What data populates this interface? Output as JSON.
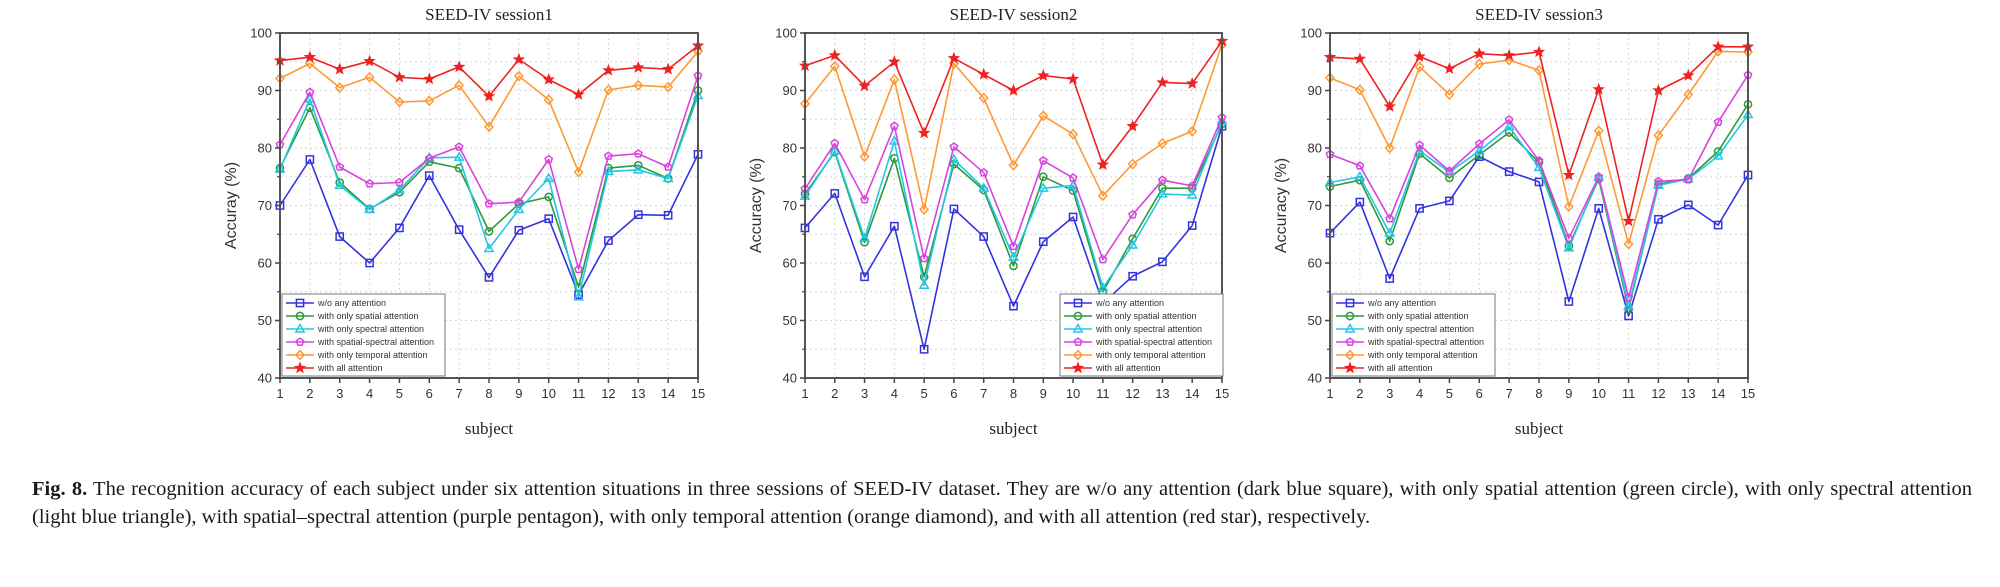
{
  "chart_data": [
    {
      "type": "line",
      "title": "SEED-IV session1",
      "xlabel": "subject",
      "ylabel": "Accuray (%)",
      "x": [
        1,
        2,
        3,
        4,
        5,
        6,
        7,
        8,
        9,
        10,
        11,
        12,
        13,
        14,
        15
      ],
      "xticks": [
        "1",
        "2",
        "3",
        "4",
        "5",
        "6",
        "7",
        "8",
        "9",
        "10",
        "11",
        "12",
        "13",
        "14",
        "15"
      ],
      "yticks": [
        "40",
        "50",
        "60",
        "70",
        "80",
        "90",
        "100"
      ],
      "ylim": [
        40,
        100
      ],
      "xlim": [
        1,
        15
      ],
      "grid": true,
      "legend_position": "bottom-left",
      "series": [
        {
          "name": "w/o any attention",
          "color": "#3333dd",
          "marker": "square",
          "values": [
            70.0,
            78.0,
            64.6,
            60.0,
            66.1,
            75.2,
            65.8,
            57.5,
            65.7,
            67.7,
            54.5,
            63.9,
            68.4,
            68.3,
            78.9
          ]
        },
        {
          "name": "with only spatial attention",
          "color": "#2e9a3a",
          "marker": "circle",
          "values": [
            76.5,
            87.0,
            74.0,
            69.4,
            72.3,
            77.6,
            76.5,
            65.5,
            70.3,
            71.5,
            55.8,
            76.5,
            77.0,
            74.7,
            90.0
          ]
        },
        {
          "name": "with only spectral attention",
          "color": "#22c8e6",
          "marker": "triangle",
          "values": [
            76.3,
            88.5,
            73.5,
            69.3,
            72.7,
            78.3,
            78.4,
            62.5,
            69.3,
            74.7,
            54.1,
            75.9,
            76.2,
            74.7,
            89.1
          ]
        },
        {
          "name": "with spatial-spectral attention",
          "color": "#d843e0",
          "marker": "pentagon",
          "values": [
            80.6,
            89.7,
            76.7,
            73.8,
            74.0,
            78.2,
            80.2,
            70.3,
            70.6,
            78.0,
            58.9,
            78.6,
            79.0,
            76.7,
            92.6
          ]
        },
        {
          "name": "with only temporal attention",
          "color": "#ff9933",
          "marker": "diamond",
          "values": [
            92.1,
            94.7,
            90.5,
            92.3,
            88.0,
            88.2,
            90.9,
            83.7,
            92.5,
            88.4,
            75.8,
            90.1,
            90.9,
            90.6,
            96.8
          ]
        },
        {
          "name": "with all attention",
          "color": "#ee2222",
          "marker": "star",
          "values": [
            95.2,
            95.8,
            93.7,
            95.1,
            92.3,
            92.0,
            94.1,
            89.0,
            95.4,
            91.9,
            89.3,
            93.5,
            94.0,
            93.7,
            97.8
          ]
        }
      ]
    },
    {
      "type": "line",
      "title": "SEED-IV session2",
      "xlabel": "subject",
      "ylabel": "Accuracy (%)",
      "x": [
        1,
        2,
        3,
        4,
        5,
        6,
        7,
        8,
        9,
        10,
        11,
        12,
        13,
        14,
        15
      ],
      "xticks": [
        "1",
        "2",
        "3",
        "4",
        "5",
        "6",
        "7",
        "8",
        "9",
        "10",
        "11",
        "12",
        "13",
        "14",
        "15"
      ],
      "yticks": [
        "40",
        "50",
        "60",
        "70",
        "80",
        "90",
        "100"
      ],
      "ylim": [
        40,
        100
      ],
      "xlim": [
        1,
        15
      ],
      "grid": true,
      "legend_position": "bottom-right",
      "series": [
        {
          "name": "w/o any attention",
          "color": "#3333dd",
          "marker": "square",
          "values": [
            66.1,
            72.1,
            57.6,
            66.4,
            45.0,
            69.4,
            64.6,
            52.5,
            63.7,
            68.0,
            53.0,
            57.7,
            60.2,
            66.5,
            83.8
          ]
        },
        {
          "name": "with only spatial attention",
          "color": "#2e9a3a",
          "marker": "circle",
          "values": [
            72.0,
            79.3,
            63.6,
            78.2,
            57.6,
            77.2,
            72.7,
            59.5,
            75.0,
            72.6,
            55.0,
            64.2,
            73.0,
            73.0,
            84.2
          ]
        },
        {
          "name": "with only spectral attention",
          "color": "#22c8e6",
          "marker": "triangle",
          "values": [
            71.6,
            79.5,
            64.3,
            81.2,
            56.1,
            78.0,
            73.0,
            61.0,
            73.0,
            73.5,
            55.7,
            63.1,
            72.0,
            71.8,
            84.6
          ]
        },
        {
          "name": "with spatial-spectral attention",
          "color": "#d843e0",
          "marker": "pentagon",
          "values": [
            72.9,
            80.8,
            71.0,
            83.8,
            60.8,
            80.2,
            75.7,
            62.9,
            77.8,
            74.8,
            60.6,
            68.4,
            74.4,
            73.4,
            85.3
          ]
        },
        {
          "name": "with only temporal attention",
          "color": "#ff9933",
          "marker": "diamond",
          "values": [
            87.7,
            94.2,
            78.5,
            91.9,
            69.3,
            94.7,
            88.7,
            77.0,
            85.6,
            82.4,
            71.7,
            77.2,
            80.8,
            82.9,
            98.0
          ]
        },
        {
          "name": "with all attention",
          "color": "#ee2222",
          "marker": "star",
          "values": [
            94.3,
            96.1,
            90.8,
            95.0,
            82.6,
            95.6,
            92.8,
            90.0,
            92.6,
            92.0,
            77.1,
            83.8,
            91.4,
            91.2,
            98.6
          ]
        }
      ]
    },
    {
      "type": "line",
      "title": "SEED-IV session3",
      "xlabel": "subject",
      "ylabel": "Accuracy (%)",
      "x": [
        1,
        2,
        3,
        4,
        5,
        6,
        7,
        8,
        9,
        10,
        11,
        12,
        13,
        14,
        15
      ],
      "xticks": [
        "1",
        "2",
        "3",
        "4",
        "5",
        "6",
        "7",
        "8",
        "9",
        "10",
        "11",
        "12",
        "13",
        "14",
        "15"
      ],
      "yticks": [
        "40",
        "50",
        "60",
        "70",
        "80",
        "90",
        "100"
      ],
      "ylim": [
        40,
        100
      ],
      "xlim": [
        1,
        15
      ],
      "grid": true,
      "legend_position": "bottom-left",
      "series": [
        {
          "name": "w/o any attention",
          "color": "#3333dd",
          "marker": "square",
          "values": [
            65.2,
            70.6,
            57.3,
            69.5,
            70.8,
            78.5,
            75.9,
            74.1,
            53.3,
            69.5,
            50.8,
            67.6,
            70.1,
            66.6,
            75.3
          ]
        },
        {
          "name": "with only spatial attention",
          "color": "#2e9a3a",
          "marker": "circle",
          "values": [
            73.3,
            74.4,
            63.8,
            79.0,
            74.8,
            78.8,
            82.7,
            77.5,
            63.0,
            74.6,
            52.0,
            73.7,
            74.7,
            79.4,
            87.6
          ]
        },
        {
          "name": "with only spectral attention",
          "color": "#22c8e6",
          "marker": "triangle",
          "values": [
            74.0,
            75.0,
            65.2,
            79.5,
            75.8,
            79.5,
            83.7,
            76.6,
            62.6,
            74.9,
            52.5,
            73.5,
            74.6,
            78.6,
            85.8
          ]
        },
        {
          "name": "with spatial-spectral attention",
          "color": "#d843e0",
          "marker": "pentagon",
          "values": [
            78.9,
            76.9,
            67.7,
            80.5,
            76.0,
            80.7,
            84.9,
            77.8,
            64.3,
            75.0,
            54.0,
            74.2,
            74.5,
            84.5,
            92.7
          ]
        },
        {
          "name": "with only temporal attention",
          "color": "#ff9933",
          "marker": "diamond",
          "values": [
            92.2,
            90.1,
            80.0,
            94.1,
            89.3,
            94.6,
            95.3,
            93.5,
            69.8,
            83.0,
            63.3,
            82.2,
            89.3,
            96.8,
            96.7
          ]
        },
        {
          "name": "with all attention",
          "color": "#ee2222",
          "marker": "star",
          "values": [
            95.8,
            95.5,
            87.2,
            95.9,
            93.8,
            96.4,
            96.1,
            96.7,
            75.3,
            90.2,
            67.3,
            90.0,
            92.6,
            97.6,
            97.6
          ]
        }
      ]
    }
  ],
  "caption": {
    "label": "Fig. 8.",
    "text": " The recognition accuracy of each subject under six attention situations in three sessions of SEED-IV dataset. They are w/o any attention (dark blue square), with only spatial attention (green circle), with only spectral attention (light blue triangle), with spatial–spectral attention (purple pentagon), with only temporal attention (orange diamond), and with all attention (red star), respectively."
  }
}
